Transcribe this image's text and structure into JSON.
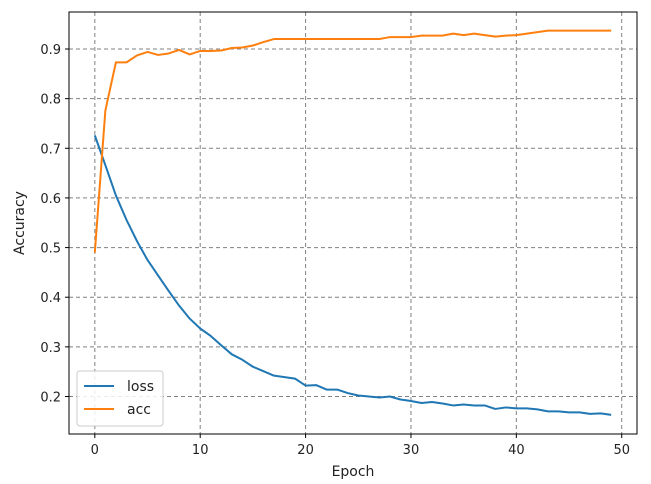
{
  "chart_data": {
    "type": "line",
    "xlabel": "Epoch",
    "ylabel": "Accuracy",
    "xlim": [
      -2.45,
      51.45
    ],
    "ylim": [
      0.1245,
      0.9745
    ],
    "xticks": [
      0,
      10,
      20,
      30,
      40,
      50
    ],
    "yticks": [
      0.2,
      0.3,
      0.4,
      0.5,
      0.6,
      0.7,
      0.8,
      0.9
    ],
    "grid": true,
    "legend_position": "lower-left",
    "x": [
      0,
      1,
      2,
      3,
      4,
      5,
      6,
      7,
      8,
      9,
      10,
      11,
      12,
      13,
      14,
      15,
      16,
      17,
      18,
      19,
      20,
      21,
      22,
      23,
      24,
      25,
      26,
      27,
      28,
      29,
      30,
      31,
      32,
      33,
      34,
      35,
      36,
      37,
      38,
      39,
      40,
      41,
      42,
      43,
      44,
      45,
      46,
      47,
      48,
      49
    ],
    "series": [
      {
        "name": "loss",
        "color": "#1f77b4",
        "values": [
          0.726,
          0.666,
          0.605,
          0.556,
          0.513,
          0.475,
          0.444,
          0.413,
          0.383,
          0.357,
          0.337,
          0.322,
          0.303,
          0.285,
          0.274,
          0.26,
          0.251,
          0.242,
          0.239,
          0.236,
          0.222,
          0.223,
          0.214,
          0.214,
          0.207,
          0.202,
          0.2,
          0.198,
          0.2,
          0.194,
          0.191,
          0.187,
          0.189,
          0.186,
          0.182,
          0.184,
          0.182,
          0.182,
          0.175,
          0.178,
          0.176,
          0.176,
          0.174,
          0.17,
          0.17,
          0.168,
          0.168,
          0.165,
          0.166,
          0.163
        ]
      },
      {
        "name": "acc",
        "color": "#ff7f0e",
        "values": [
          0.49,
          0.776,
          0.873,
          0.873,
          0.887,
          0.894,
          0.888,
          0.891,
          0.898,
          0.889,
          0.896,
          0.896,
          0.897,
          0.902,
          0.903,
          0.907,
          0.914,
          0.92,
          0.92,
          0.92,
          0.92,
          0.92,
          0.92,
          0.92,
          0.92,
          0.92,
          0.92,
          0.92,
          0.924,
          0.924,
          0.924,
          0.927,
          0.927,
          0.927,
          0.931,
          0.928,
          0.931,
          0.928,
          0.925,
          0.927,
          0.928,
          0.931,
          0.934,
          0.937,
          0.937,
          0.937,
          0.937,
          0.937,
          0.937,
          0.937
        ]
      }
    ]
  }
}
